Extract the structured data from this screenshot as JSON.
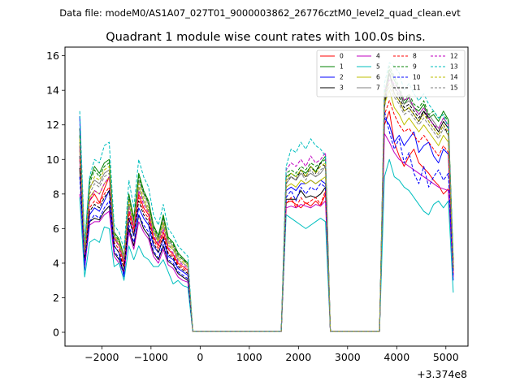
{
  "chart_data": {
    "type": "line",
    "supertitle": "Data file: modeM0/AS1A07_027T01_9000003862_26776cztM0_level2_quad_clean.evt",
    "title": "Quadrant 1 module wise count rates with 100.0s bins.",
    "xlabel": "",
    "ylabel": "",
    "x_offset_label": "+3.374e8",
    "xlim": [
      -2750,
      5450
    ],
    "ylim": [
      -0.8,
      16.5
    ],
    "xticks": [
      -2000,
      -1000,
      0,
      1000,
      2000,
      3000,
      4000,
      5000
    ],
    "xtick_labels": [
      "−2000",
      "−1000",
      "0",
      "1000",
      "2000",
      "3000",
      "4000",
      "5000"
    ],
    "yticks": [
      0,
      2,
      4,
      6,
      8,
      10,
      12,
      14,
      16
    ],
    "ytick_labels": [
      "0",
      "2",
      "4",
      "6",
      "8",
      "10",
      "12",
      "14",
      "16"
    ],
    "legend_position": "top-right",
    "x": [
      -2450,
      -2350,
      -2250,
      -2150,
      -2050,
      -1950,
      -1850,
      -1750,
      -1650,
      -1550,
      -1450,
      -1350,
      -1250,
      -1150,
      -1050,
      -950,
      -850,
      -750,
      -650,
      -550,
      -450,
      -350,
      -250,
      -150,
      -50,
      1650,
      1750,
      1850,
      1950,
      2050,
      2150,
      2250,
      2350,
      2450,
      2550,
      2650,
      3650,
      3750,
      3850,
      3950,
      4050,
      4150,
      4250,
      4350,
      4450,
      4550,
      4650,
      4750,
      4850,
      4950,
      5050,
      5150
    ],
    "series": [
      {
        "name": "0",
        "color": "#ff0000",
        "dash": "solid",
        "values": [
          10.8,
          4.8,
          7.6,
          8.0,
          7.5,
          8.3,
          9.0,
          5.5,
          5.0,
          4.0,
          7.0,
          6.0,
          8.0,
          7.2,
          6.8,
          5.5,
          5.0,
          5.8,
          4.8,
          4.5,
          4.0,
          3.8,
          3.6,
          0.05,
          0.05,
          0.05,
          7.5,
          7.6,
          7.4,
          7.2,
          7.5,
          7.3,
          7.6,
          7.3,
          8.0,
          0.05,
          0.05,
          12.0,
          12.8,
          11.0,
          10.2,
          9.6,
          10.2,
          10.6,
          9.8,
          9.5,
          9.2,
          8.8,
          8.5,
          8.0,
          8.3,
          3.5
        ]
      },
      {
        "name": "1",
        "color": "#008000",
        "dash": "solid",
        "values": [
          11.8,
          5.0,
          8.8,
          9.6,
          9.2,
          9.8,
          10.0,
          5.8,
          5.4,
          4.4,
          8.0,
          6.6,
          9.2,
          8.2,
          7.6,
          6.2,
          5.6,
          6.8,
          5.5,
          5.2,
          4.6,
          4.3,
          4.0,
          0.05,
          0.05,
          0.05,
          9.0,
          9.2,
          9.0,
          9.4,
          9.2,
          9.6,
          9.3,
          9.8,
          10.2,
          0.05,
          0.05,
          13.8,
          15.2,
          14.6,
          14.0,
          13.2,
          13.6,
          13.0,
          12.8,
          13.2,
          12.4,
          12.6,
          12.2,
          12.8,
          12.3,
          4.2
        ]
      },
      {
        "name": "2",
        "color": "#0000ff",
        "dash": "solid",
        "values": [
          12.5,
          3.6,
          6.8,
          7.2,
          7.0,
          7.6,
          8.2,
          5.0,
          4.6,
          3.2,
          6.6,
          5.6,
          7.2,
          6.6,
          6.2,
          5.0,
          4.6,
          5.4,
          4.4,
          4.2,
          3.7,
          3.5,
          3.3,
          0.05,
          0.05,
          0.05,
          8.2,
          8.4,
          8.2,
          8.6,
          8.6,
          8.8,
          8.6,
          8.8,
          8.6,
          0.05,
          0.05,
          12.4,
          12.0,
          11.0,
          11.4,
          10.8,
          11.2,
          11.6,
          10.4,
          10.8,
          11.0,
          10.2,
          9.8,
          10.6,
          10.3,
          3.0
        ]
      },
      {
        "name": "3",
        "color": "#000000",
        "dash": "solid",
        "values": [
          9.5,
          4.0,
          6.4,
          6.6,
          6.5,
          7.0,
          7.3,
          4.6,
          4.2,
          3.5,
          6.0,
          5.0,
          6.8,
          6.0,
          5.6,
          4.6,
          4.2,
          5.0,
          4.1,
          3.9,
          3.4,
          3.2,
          3.0,
          0.05,
          0.05,
          0.05,
          7.7,
          7.7,
          7.7,
          8.2,
          7.8,
          7.9,
          7.8,
          8.0,
          8.4,
          0.05,
          0.05,
          13.0,
          15.0,
          13.8,
          13.4,
          12.8,
          13.0,
          12.6,
          12.2,
          12.8,
          12.4,
          12.0,
          11.6,
          12.2,
          11.8,
          3.6
        ]
      },
      {
        "name": "4",
        "color": "#c000c0",
        "dash": "solid",
        "values": [
          8.0,
          3.8,
          6.2,
          6.4,
          6.4,
          6.8,
          7.0,
          4.4,
          4.0,
          3.4,
          5.8,
          4.8,
          6.4,
          5.8,
          5.4,
          4.4,
          4.0,
          4.8,
          3.9,
          3.7,
          3.2,
          3.0,
          2.9,
          0.05,
          0.05,
          0.05,
          7.2,
          7.3,
          7.2,
          7.4,
          7.3,
          7.2,
          7.4,
          7.3,
          7.6,
          0.05,
          0.05,
          11.5,
          11.0,
          10.4,
          10.0,
          9.8,
          9.6,
          9.4,
          9.2,
          9.0,
          8.8,
          8.6,
          8.4,
          8.3,
          8.2,
          3.2
        ]
      },
      {
        "name": "5",
        "color": "#00bfbf",
        "dash": "solid",
        "values": [
          7.8,
          3.2,
          5.2,
          5.4,
          5.2,
          6.1,
          6.0,
          3.8,
          4.0,
          3.0,
          5.0,
          4.2,
          5.0,
          4.4,
          4.2,
          3.8,
          3.8,
          4.2,
          3.5,
          2.8,
          3.0,
          2.7,
          2.6,
          0.05,
          0.05,
          0.05,
          6.8,
          6.6,
          6.4,
          6.2,
          6.0,
          6.2,
          6.4,
          6.6,
          6.4,
          0.05,
          0.05,
          9.0,
          10.0,
          9.0,
          8.8,
          8.4,
          8.2,
          7.8,
          7.4,
          7.0,
          6.8,
          7.4,
          7.6,
          7.2,
          7.6,
          2.3
        ]
      },
      {
        "name": "6",
        "color": "#bfbf00",
        "dash": "solid",
        "values": [
          10.5,
          4.6,
          7.8,
          8.2,
          8.0,
          8.6,
          9.0,
          5.4,
          5.0,
          4.2,
          7.4,
          6.2,
          8.4,
          7.6,
          7.0,
          5.8,
          5.2,
          6.2,
          5.0,
          4.8,
          4.2,
          4.0,
          3.8,
          0.05,
          0.05,
          0.05,
          8.4,
          8.6,
          8.4,
          8.8,
          8.6,
          8.8,
          8.6,
          8.8,
          9.0,
          0.05,
          0.05,
          13.2,
          14.0,
          13.0,
          12.6,
          12.0,
          12.4,
          12.0,
          11.6,
          12.0,
          11.6,
          11.2,
          10.8,
          11.4,
          11.0,
          3.6
        ]
      },
      {
        "name": "7",
        "color": "#808080",
        "dash": "solid",
        "values": [
          11.0,
          4.8,
          8.4,
          8.8,
          8.6,
          9.2,
          9.4,
          5.6,
          5.2,
          4.4,
          7.8,
          6.4,
          8.8,
          8.0,
          7.4,
          6.0,
          5.4,
          6.6,
          5.3,
          5.0,
          4.4,
          4.2,
          3.9,
          0.05,
          0.05,
          0.05,
          8.8,
          9.0,
          8.8,
          9.2,
          9.0,
          9.2,
          9.0,
          9.2,
          9.6,
          0.05,
          0.05,
          13.6,
          15.0,
          14.2,
          13.8,
          13.2,
          13.4,
          13.0,
          12.6,
          13.0,
          12.6,
          12.2,
          11.8,
          12.4,
          12.0,
          4.0
        ]
      },
      {
        "name": "8",
        "color": "#ff0000",
        "dash": "dashed",
        "values": [
          10.0,
          4.4,
          7.2,
          7.6,
          7.4,
          8.0,
          8.4,
          5.2,
          4.8,
          3.8,
          6.8,
          5.8,
          7.8,
          7.0,
          6.6,
          5.4,
          4.8,
          5.6,
          4.6,
          4.4,
          3.9,
          3.7,
          3.5,
          0.05,
          0.05,
          0.05,
          7.4,
          7.8,
          7.2,
          7.8,
          7.4,
          7.6,
          7.8,
          7.4,
          8.2,
          0.05,
          0.05,
          12.6,
          13.4,
          12.6,
          12.0,
          11.6,
          11.8,
          11.4,
          11.0,
          11.4,
          11.0,
          10.6,
          10.2,
          10.8,
          10.4,
          3.4
        ]
      },
      {
        "name": "9",
        "color": "#008000",
        "dash": "dashed",
        "values": [
          11.4,
          4.9,
          8.6,
          9.4,
          9.0,
          9.6,
          9.8,
          5.7,
          5.3,
          4.3,
          7.9,
          6.5,
          9.0,
          8.1,
          7.5,
          6.1,
          5.5,
          6.7,
          5.4,
          5.1,
          4.5,
          4.2,
          4.0,
          0.05,
          0.05,
          0.05,
          9.2,
          9.4,
          9.2,
          9.6,
          9.4,
          9.8,
          9.6,
          9.8,
          10.0,
          0.05,
          0.05,
          13.6,
          15.4,
          14.8,
          14.2,
          13.4,
          13.8,
          13.2,
          13.0,
          13.4,
          12.6,
          12.8,
          12.4,
          12.6,
          12.2,
          4.1
        ]
      },
      {
        "name": "10",
        "color": "#0000ff",
        "dash": "dashed",
        "values": [
          9.0,
          3.9,
          6.4,
          6.8,
          6.6,
          7.2,
          7.6,
          4.7,
          4.3,
          3.3,
          6.2,
          5.2,
          6.8,
          6.2,
          5.8,
          4.7,
          4.3,
          5.1,
          4.2,
          4.0,
          3.5,
          3.3,
          3.1,
          0.05,
          0.05,
          0.05,
          7.8,
          8.2,
          7.6,
          8.4,
          8.0,
          8.4,
          8.2,
          8.6,
          8.4,
          0.05,
          0.05,
          12.8,
          11.6,
          10.6,
          11.2,
          9.8,
          10.4,
          9.2,
          8.6,
          9.6,
          8.4,
          9.0,
          9.4,
          8.8,
          9.2,
          3.3
        ]
      },
      {
        "name": "11",
        "color": "#000000",
        "dash": "dashed",
        "values": [
          10.2,
          4.3,
          7.0,
          7.4,
          7.2,
          7.8,
          8.2,
          5.0,
          4.6,
          3.7,
          6.6,
          5.6,
          7.6,
          6.8,
          6.4,
          5.2,
          4.6,
          5.5,
          4.5,
          4.3,
          3.8,
          3.6,
          3.4,
          0.05,
          0.05,
          0.05,
          8.6,
          9.0,
          8.8,
          9.4,
          9.0,
          9.6,
          9.2,
          9.8,
          9.6,
          0.05,
          0.05,
          13.4,
          15.0,
          14.2,
          13.6,
          13.0,
          13.2,
          12.8,
          12.4,
          12.8,
          12.2,
          11.8,
          11.4,
          12.0,
          11.4,
          3.8
        ]
      },
      {
        "name": "12",
        "color": "#c000c0",
        "dash": "dashed",
        "values": [
          10.6,
          4.5,
          7.6,
          8.2,
          8.0,
          8.6,
          9.0,
          5.4,
          5.0,
          4.1,
          7.2,
          6.1,
          8.2,
          7.4,
          6.9,
          5.6,
          5.1,
          6.0,
          4.9,
          4.6,
          4.1,
          3.9,
          3.7,
          0.05,
          0.05,
          0.05,
          9.4,
          9.8,
          9.6,
          10.0,
          9.6,
          10.2,
          9.8,
          10.0,
          10.4,
          0.05,
          0.05,
          14.0,
          14.6,
          14.4,
          14.0,
          13.4,
          13.6,
          13.0,
          12.6,
          13.0,
          12.4,
          12.0,
          11.8,
          12.4,
          12.0,
          4.0
        ]
      },
      {
        "name": "13",
        "color": "#00bfbf",
        "dash": "dashed",
        "values": [
          12.8,
          5.2,
          9.0,
          10.0,
          9.8,
          10.8,
          11.0,
          6.2,
          5.8,
          4.8,
          8.8,
          7.2,
          10.0,
          9.0,
          8.4,
          6.8,
          6.2,
          7.4,
          6.0,
          5.6,
          5.0,
          4.7,
          4.4,
          0.05,
          0.05,
          0.05,
          9.6,
          10.6,
          10.4,
          11.0,
          10.6,
          11.2,
          10.8,
          10.6,
          10.2,
          0.05,
          0.05,
          14.4,
          15.6,
          15.4,
          15.0,
          14.0,
          14.4,
          13.8,
          13.4,
          13.8,
          13.2,
          12.8,
          12.4,
          12.6,
          11.8,
          4.4
        ]
      },
      {
        "name": "14",
        "color": "#bfbf00",
        "dash": "dashed",
        "values": [
          11.2,
          4.7,
          8.2,
          9.0,
          8.8,
          9.4,
          9.6,
          5.6,
          5.2,
          4.3,
          7.6,
          6.3,
          8.6,
          7.8,
          7.2,
          5.9,
          5.3,
          6.4,
          5.2,
          4.9,
          4.3,
          4.1,
          3.9,
          0.05,
          0.05,
          0.05,
          8.8,
          9.2,
          9.0,
          9.4,
          9.0,
          9.6,
          9.2,
          9.6,
          9.8,
          0.05,
          0.05,
          13.8,
          14.4,
          13.8,
          13.4,
          12.8,
          13.0,
          12.6,
          12.2,
          12.6,
          12.2,
          11.8,
          11.4,
          12.0,
          11.6,
          3.9
        ]
      },
      {
        "name": "15",
        "color": "#808080",
        "dash": "dashed",
        "values": [
          10.8,
          4.6,
          8.0,
          8.6,
          8.4,
          9.0,
          9.2,
          5.5,
          5.1,
          4.2,
          7.4,
          6.2,
          8.4,
          7.6,
          7.1,
          5.8,
          5.2,
          6.3,
          5.1,
          4.8,
          4.2,
          4.0,
          3.8,
          0.05,
          0.05,
          0.05,
          8.6,
          9.0,
          8.8,
          9.2,
          8.8,
          9.4,
          9.0,
          9.4,
          9.6,
          0.05,
          0.05,
          13.6,
          14.2,
          13.6,
          13.2,
          12.6,
          12.8,
          12.4,
          12.0,
          12.4,
          12.0,
          11.6,
          11.2,
          11.8,
          11.4,
          3.8
        ]
      }
    ]
  }
}
